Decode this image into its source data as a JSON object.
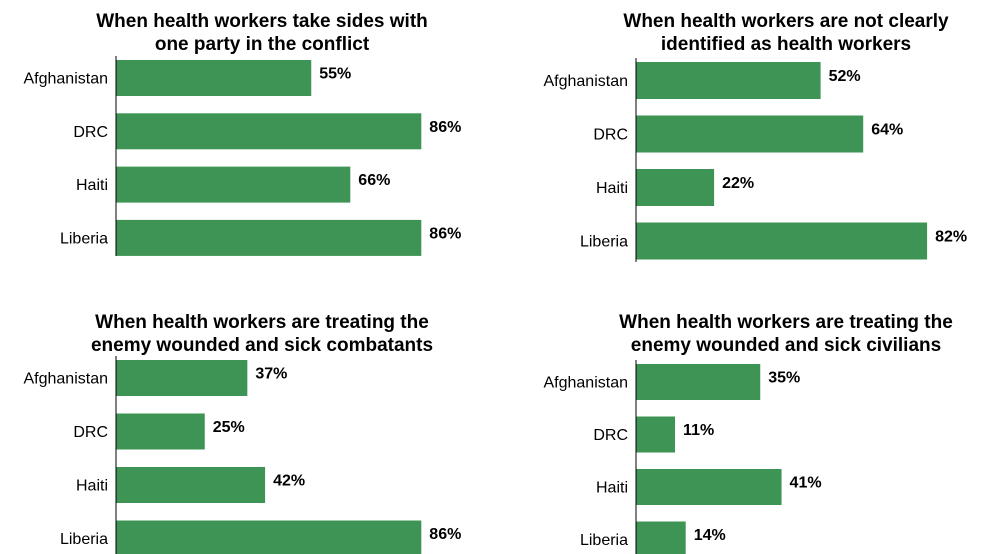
{
  "bar_color": "#3d9455",
  "axis_color": "#000000",
  "chart_data": [
    {
      "type": "bar",
      "orientation": "horizontal",
      "title": "When health workers take sides with one party in the conflict",
      "title_lines": [
        "When health workers take sides with",
        "one party in the conflict"
      ],
      "categories": [
        "Afghanistan",
        "DRC",
        "Haiti",
        "Liberia"
      ],
      "values": [
        55,
        86,
        66,
        86
      ],
      "value_labels": [
        "55%",
        "86%",
        "66%",
        "86%"
      ],
      "xlim": [
        0,
        100
      ],
      "grid": false
    },
    {
      "type": "bar",
      "orientation": "horizontal",
      "title": "When health workers are not clearly identified as health workers",
      "title_lines": [
        "When health workers are not clearly",
        "identified as health workers"
      ],
      "categories": [
        "Afghanistan",
        "DRC",
        "Haiti",
        "Liberia"
      ],
      "values": [
        52,
        64,
        22,
        82
      ],
      "value_labels": [
        "52%",
        "64%",
        "22%",
        "82%"
      ],
      "xlim": [
        0,
        100
      ],
      "grid": false
    },
    {
      "type": "bar",
      "orientation": "horizontal",
      "title": "When health workers are treating the enemy wounded and sick combatants",
      "title_lines": [
        "When health workers are treating the",
        "enemy wounded and sick combatants"
      ],
      "categories": [
        "Afghanistan",
        "DRC",
        "Haiti",
        "Liberia"
      ],
      "values": [
        37,
        25,
        42,
        86
      ],
      "value_labels": [
        "37%",
        "25%",
        "42%",
        "86%"
      ],
      "xlim": [
        0,
        100
      ],
      "grid": false
    },
    {
      "type": "bar",
      "orientation": "horizontal",
      "title": "When health workers are treating the enemy wounded and sick civilians",
      "title_lines": [
        "When health workers are treating the",
        "enemy wounded and sick civilians"
      ],
      "categories": [
        "Afghanistan",
        "DRC",
        "Haiti",
        "Liberia"
      ],
      "values": [
        35,
        11,
        41,
        14
      ],
      "value_labels": [
        "35%",
        "11%",
        "41%",
        "14%"
      ],
      "xlim": [
        0,
        100
      ],
      "grid": false
    }
  ]
}
